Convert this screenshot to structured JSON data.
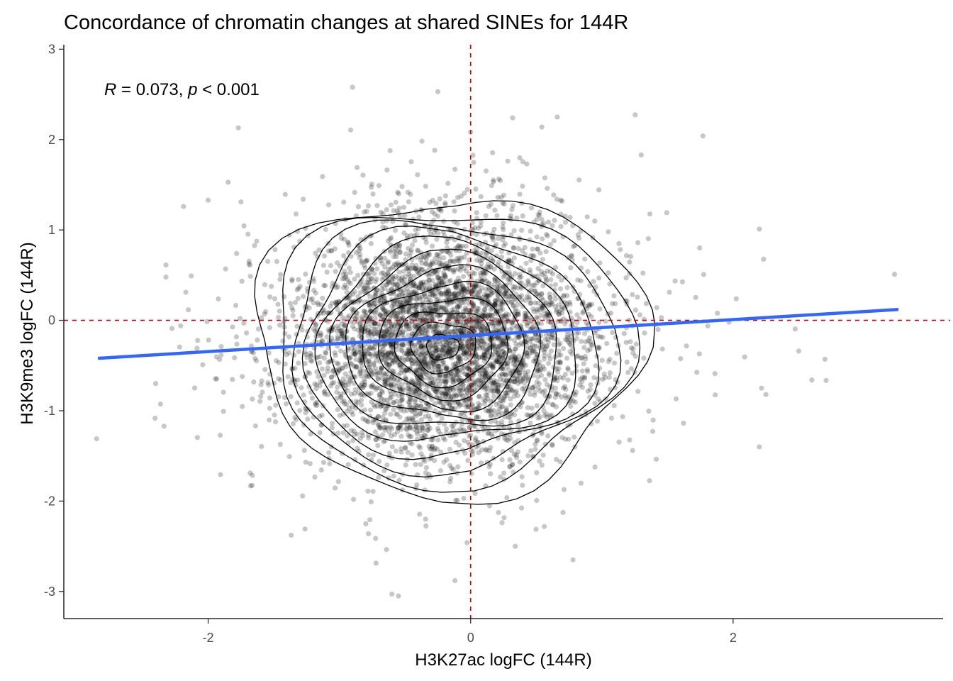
{
  "chart_data": {
    "type": "scatter",
    "title": "Concordance of chromatin changes at shared SINEs for 144R",
    "xlabel": "H3K27ac logFC (144R)",
    "ylabel": "H3K9me3 logFC (144R)",
    "xlim": [
      -3.1,
      3.6
    ],
    "ylim": [
      -3.3,
      3.05
    ],
    "x_ticks": [
      -2,
      0,
      2
    ],
    "x_tick_labels": [
      "-2",
      "0",
      "2"
    ],
    "y_ticks": [
      -3,
      -2,
      -1,
      0,
      1,
      2,
      3
    ],
    "y_tick_labels": [
      "-3",
      "-2",
      "-1",
      "0",
      "1",
      "2",
      "3"
    ],
    "grid": false,
    "reference_lines": {
      "x": 0,
      "y": 0,
      "color": "#cc0000",
      "style": "dashed"
    },
    "annotation": {
      "r_symbol": "R",
      "r_text": " = 0.073, ",
      "p_symbol": "p",
      "p_text": " < 0.001"
    },
    "point_color": "#000000",
    "point_alpha": 0.22,
    "point_count_estimate": 4500,
    "point_distribution": {
      "x_center": -0.2,
      "x_sd": 0.55,
      "y_center": -0.2,
      "y_sd": 0.62
    },
    "fit_line": {
      "color": "#3366ff",
      "x": [
        -2.84,
        3.26
      ],
      "y": [
        -0.42,
        0.12
      ]
    },
    "density_contours_shown": true,
    "outlier_points": [
      {
        "x": -2.85,
        "y": -1.31
      },
      {
        "x": -2.0,
        "y": 1.33
      },
      {
        "x": -1.75,
        "y": 1.31
      },
      {
        "x": -1.77,
        "y": 2.13
      },
      {
        "x": -0.9,
        "y": 2.58
      },
      {
        "x": -0.25,
        "y": 2.53
      },
      {
        "x": 0.32,
        "y": 2.24
      },
      {
        "x": 0.66,
        "y": 2.25
      },
      {
        "x": 1.77,
        "y": 2.04
      },
      {
        "x": 2.2,
        "y": 1.01
      },
      {
        "x": 3.23,
        "y": 0.51
      },
      {
        "x": 2.6,
        "y": -0.66
      },
      {
        "x": 2.2,
        "y": -1.4
      },
      {
        "x": 2.25,
        "y": -0.82
      },
      {
        "x": -0.6,
        "y": -3.03
      },
      {
        "x": -0.55,
        "y": -3.05
      },
      {
        "x": -0.12,
        "y": -2.88
      },
      {
        "x": 0.78,
        "y": -2.65
      },
      {
        "x": 0.34,
        "y": -2.5
      },
      {
        "x": -1.68,
        "y": -1.69
      },
      {
        "x": -2.4,
        "y": -0.7
      },
      {
        "x": 2.5,
        "y": -0.34
      },
      {
        "x": 2.7,
        "y": -0.43
      },
      {
        "x": 1.3,
        "y": 1.83
      }
    ]
  }
}
